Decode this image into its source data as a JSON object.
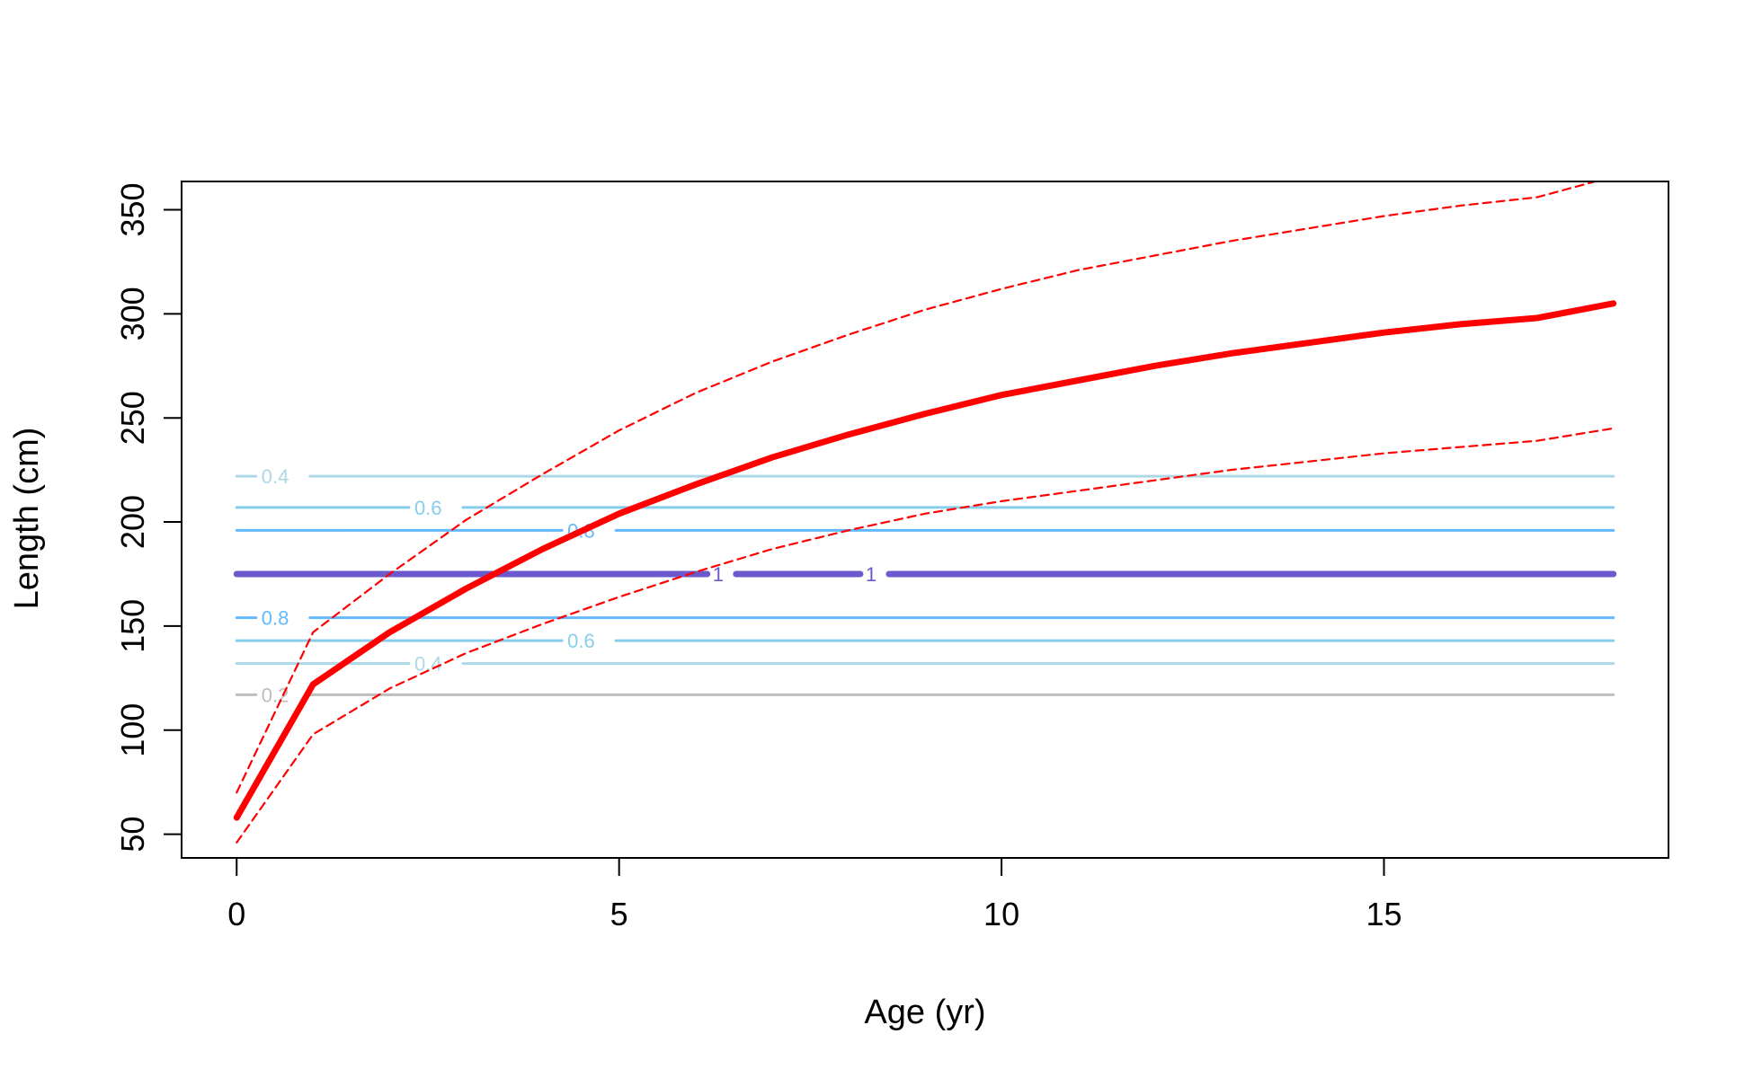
{
  "chart_data": {
    "type": "line",
    "title": "",
    "xlabel": "Age (yr)",
    "ylabel": "Length (cm)",
    "xlim": [
      -0.72,
      18.72
    ],
    "ylim": [
      38.6,
      363.6
    ],
    "x_ticks": [
      0,
      5,
      10,
      15
    ],
    "x_tick_labels": [
      "0",
      "5",
      "10",
      "15"
    ],
    "y_ticks": [
      50,
      100,
      150,
      200,
      250,
      300,
      350
    ],
    "y_tick_labels": [
      "50",
      "100",
      "150",
      "200",
      "250",
      "300",
      "350"
    ],
    "grid": false,
    "legend": "none",
    "series": [
      {
        "style": "solid-thick",
        "color": "#ff0000",
        "points": [
          [
            0,
            58
          ],
          [
            1,
            122
          ],
          [
            2,
            147
          ],
          [
            3,
            168
          ],
          [
            4,
            187
          ],
          [
            5,
            204
          ],
          [
            6,
            218
          ],
          [
            7,
            231
          ],
          [
            8,
            242
          ],
          [
            9,
            252
          ],
          [
            10,
            261
          ],
          [
            11,
            268
          ],
          [
            12,
            275
          ],
          [
            13,
            281
          ],
          [
            14,
            286
          ],
          [
            15,
            291
          ],
          [
            16,
            295
          ],
          [
            17,
            298
          ],
          [
            18,
            305
          ]
        ]
      },
      {
        "style": "dashed",
        "color": "#ff0000",
        "points": [
          [
            0,
            70
          ],
          [
            1,
            147
          ],
          [
            2,
            175
          ],
          [
            3,
            201
          ],
          [
            4,
            223
          ],
          [
            5,
            244
          ],
          [
            6,
            262
          ],
          [
            7,
            277
          ],
          [
            8,
            290
          ],
          [
            9,
            302
          ],
          [
            10,
            312
          ],
          [
            11,
            321
          ],
          [
            12,
            328
          ],
          [
            13,
            335
          ],
          [
            14,
            341
          ],
          [
            15,
            347
          ],
          [
            16,
            352
          ],
          [
            17,
            356
          ],
          [
            17.8,
            364
          ]
        ]
      },
      {
        "style": "dashed",
        "color": "#ff0000",
        "points": [
          [
            0,
            46
          ],
          [
            1,
            98
          ],
          [
            2,
            120
          ],
          [
            3,
            137
          ],
          [
            4,
            151
          ],
          [
            5,
            164
          ],
          [
            6,
            176
          ],
          [
            7,
            187
          ],
          [
            8,
            196
          ],
          [
            9,
            204
          ],
          [
            10,
            210
          ],
          [
            11,
            215
          ],
          [
            12,
            220
          ],
          [
            13,
            225
          ],
          [
            14,
            229
          ],
          [
            15,
            233
          ],
          [
            16,
            236
          ],
          [
            17,
            239
          ],
          [
            18,
            245
          ]
        ]
      }
    ],
    "contours": [
      {
        "y": 222,
        "label": "0.4",
        "label_x": 0.3,
        "color": "#add8e6",
        "width": 3
      },
      {
        "y": 207,
        "label": "0.6",
        "label_x": 2.3,
        "color": "#87ceeb",
        "width": 3
      },
      {
        "y": 196,
        "label": "0.8",
        "label_x": 4.3,
        "color": "#63b8ff",
        "width": 3
      },
      {
        "y": 175,
        "label": "1",
        "label_x": 6.2,
        "color": "#6a5acd",
        "width": 7
      },
      {
        "y": 175,
        "label": "1",
        "label_x": 8.2,
        "color": "#6a5acd",
        "width": 7
      },
      {
        "y": 154,
        "label": "0.8",
        "label_x": 0.3,
        "color": "#63b8ff",
        "width": 3
      },
      {
        "y": 143,
        "label": "0.6",
        "label_x": 4.3,
        "color": "#87ceeb",
        "width": 3
      },
      {
        "y": 132,
        "label": "0.4",
        "label_x": 2.3,
        "color": "#add8e6",
        "width": 3
      },
      {
        "y": 117,
        "label": "0.2",
        "label_x": 0.3,
        "color": "#bebebe",
        "width": 3
      }
    ],
    "contour_x_range": [
      0,
      18
    ]
  }
}
